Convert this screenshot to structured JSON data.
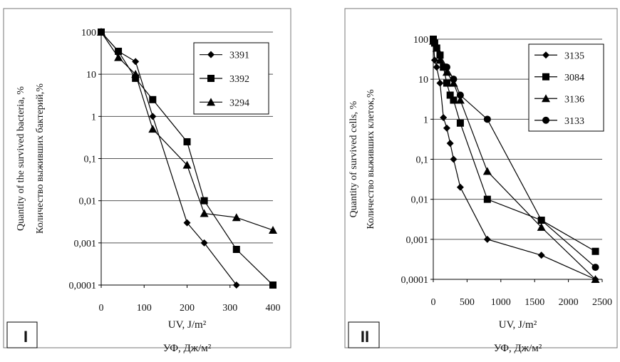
{
  "chart_data": [
    {
      "type": "line",
      "panel_label": "I",
      "xlabel": "UV, J/m²",
      "xlabel_ru": "УФ, Дж/м²",
      "ylabel": "Quantity of the survived bacteria, %",
      "ylabel_ru": "Количество выживших бактерий,%",
      "x_ticks": [
        "0",
        "100",
        "200",
        "300",
        "400"
      ],
      "y_ticks": [
        "0,0001",
        "0,001",
        "0,01",
        "0,1",
        "1",
        "10",
        "100"
      ],
      "xlim": [
        0,
        400
      ],
      "ylim": [
        0.0001,
        100
      ],
      "y_scale": "log",
      "grid": "horizontal",
      "legend_position": "top-right",
      "series": [
        {
          "name": "3391",
          "marker": "diamond",
          "x": [
            0,
            40,
            80,
            120,
            200,
            240,
            315
          ],
          "y": [
            100,
            35,
            20,
            1,
            0.003,
            0.001,
            0.0001
          ]
        },
        {
          "name": "3392",
          "marker": "square",
          "x": [
            0,
            40,
            80,
            120,
            200,
            240,
            315,
            400
          ],
          "y": [
            100,
            35,
            8,
            2.5,
            0.25,
            0.01,
            0.0007,
            0.0001
          ]
        },
        {
          "name": "3294",
          "marker": "triangle",
          "x": [
            0,
            40,
            80,
            120,
            200,
            240,
            315,
            400
          ],
          "y": [
            100,
            25,
            10,
            0.5,
            0.07,
            0.005,
            0.004,
            0.002
          ]
        }
      ]
    },
    {
      "type": "line",
      "panel_label": "II",
      "xlabel": "UV, J/m²",
      "xlabel_ru": "УФ, Дж/м²",
      "ylabel": "Quantity of survived cells, %",
      "ylabel_ru": "Количество выживших клеток,%",
      "x_ticks": [
        "0",
        "500",
        "1000",
        "1500",
        "2000",
        "2500"
      ],
      "y_ticks": [
        "0,0001",
        "0,001",
        "0,01",
        "0,1",
        "1",
        "10",
        "100"
      ],
      "xlim": [
        0,
        2500
      ],
      "ylim": [
        0.0001,
        100
      ],
      "y_scale": "log",
      "grid": "horizontal",
      "legend_position": "top-right",
      "series": [
        {
          "name": "3135",
          "marker": "diamond",
          "x": [
            0,
            20,
            50,
            100,
            150,
            200,
            250,
            300,
            400,
            800,
            1600,
            2400
          ],
          "y": [
            100,
            30,
            20,
            8,
            1.1,
            0.6,
            0.25,
            0.1,
            0.02,
            0.001,
            0.0004,
            0.0001
          ]
        },
        {
          "name": "3084",
          "marker": "square",
          "x": [
            0,
            20,
            50,
            100,
            150,
            200,
            250,
            300,
            400,
            800,
            1600,
            2400
          ],
          "y": [
            100,
            80,
            60,
            40,
            20,
            8,
            4,
            3,
            0.8,
            0.01,
            0.003,
            0.0005
          ]
        },
        {
          "name": "3136",
          "marker": "triangle",
          "x": [
            0,
            50,
            100,
            200,
            300,
            400,
            800,
            1600,
            2400
          ],
          "y": [
            90,
            60,
            30,
            15,
            8,
            3,
            0.05,
            0.002,
            0.0001
          ]
        },
        {
          "name": "3133",
          "marker": "circle",
          "x": [
            0,
            50,
            100,
            200,
            300,
            400,
            800,
            1600,
            2400
          ],
          "y": [
            90,
            60,
            40,
            20,
            10,
            4,
            1,
            0.003,
            0.0002
          ]
        }
      ]
    }
  ]
}
